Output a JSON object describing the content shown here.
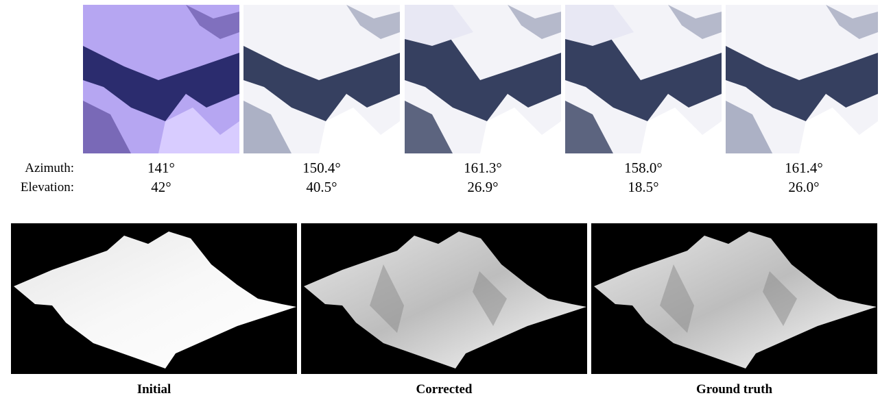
{
  "row_labels": {
    "azimuth": "Azimuth:",
    "elevation": "Elevation:"
  },
  "images": [
    {
      "azimuth": "141°",
      "elevation": "42°"
    },
    {
      "azimuth": "150.4°",
      "elevation": "40.5°"
    },
    {
      "azimuth": "161.3°",
      "elevation": "26.9°"
    },
    {
      "azimuth": "158.0°",
      "elevation": "18.5°"
    },
    {
      "azimuth": "161.4°",
      "elevation": "26.0°"
    }
  ],
  "renders": [
    {
      "caption": "Initial"
    },
    {
      "caption": "Corrected"
    },
    {
      "caption": "Ground truth"
    }
  ]
}
